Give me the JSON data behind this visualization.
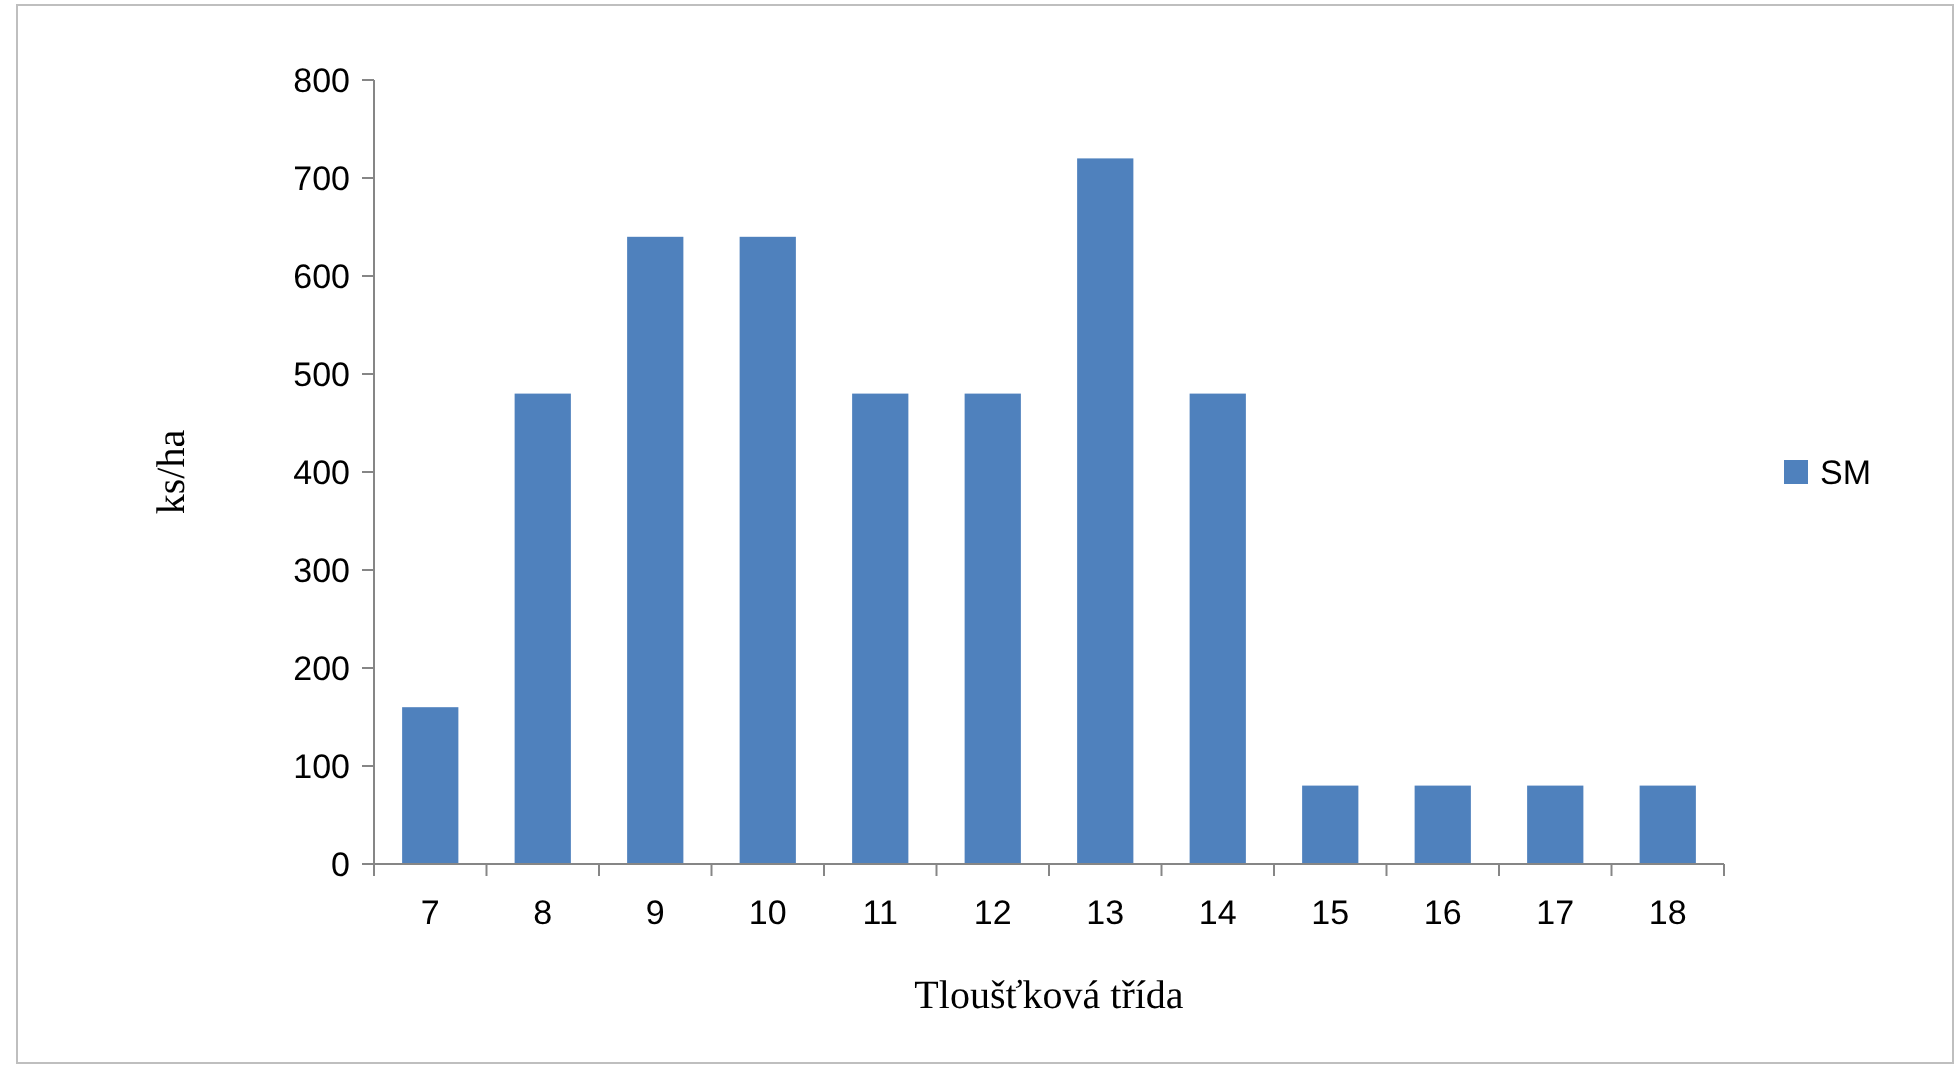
{
  "chart_data": {
    "type": "bar",
    "xlabel": "Tloušťková třída",
    "ylabel": "ks/ha",
    "categories": [
      "7",
      "8",
      "9",
      "10",
      "11",
      "12",
      "13",
      "14",
      "15",
      "16",
      "17",
      "18"
    ],
    "series": [
      {
        "name": "SM",
        "color": "#4f81bd",
        "values": [
          160,
          480,
          640,
          640,
          480,
          480,
          720,
          480,
          80,
          80,
          80,
          80
        ]
      }
    ],
    "ylim": [
      0,
      800
    ],
    "yticks": [
      0,
      100,
      200,
      300,
      400,
      500,
      600,
      700,
      800
    ],
    "grid": false,
    "legend": "right"
  }
}
